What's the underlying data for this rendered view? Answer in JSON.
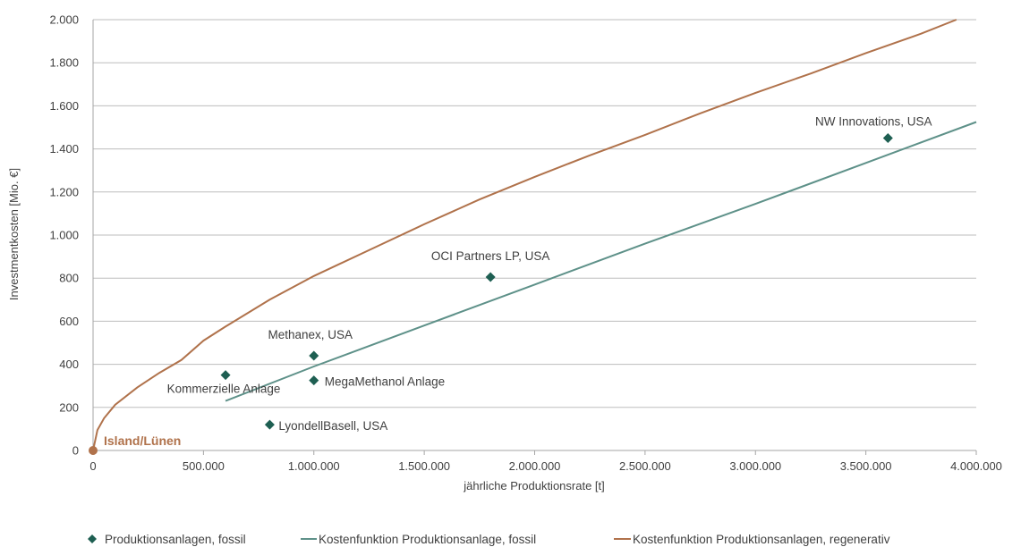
{
  "chart_data": {
    "type": "scatter",
    "xlabel": "jährliche Produktionsrate [t]",
    "ylabel": "Investmentkosten [Mio. €]",
    "xlim": [
      0,
      4000000
    ],
    "ylim": [
      0,
      2000
    ],
    "x_ticks": [
      0,
      500000,
      1000000,
      1500000,
      2000000,
      2500000,
      3000000,
      3500000,
      4000000
    ],
    "x_tick_labels": [
      "0",
      "500.000",
      "1.000.000",
      "1.500.000",
      "2.000.000",
      "2.500.000",
      "3.000.000",
      "3.500.000",
      "4.000.000"
    ],
    "y_ticks": [
      0,
      200,
      400,
      600,
      800,
      1000,
      1200,
      1400,
      1600,
      1800,
      2000
    ],
    "y_tick_labels": [
      "0",
      "200",
      "400",
      "600",
      "800",
      "1.000",
      "1.200",
      "1.400",
      "1.600",
      "1.800",
      "2.000"
    ],
    "grid": "horizontal",
    "legend_position": "bottom",
    "series": [
      {
        "name": "Produktionsanlagen, fossil",
        "kind": "scatter",
        "color": "#1e5f52",
        "marker": "diamond",
        "points": [
          {
            "x": 600000,
            "y": 350,
            "label": "Kommerzielle Anlage"
          },
          {
            "x": 1000000,
            "y": 440,
            "label": "Methanex, USA"
          },
          {
            "x": 1000000,
            "y": 325,
            "label": "MegaMethanol Anlage"
          },
          {
            "x": 800000,
            "y": 120,
            "label": "LyondellBasell, USA"
          },
          {
            "x": 1800000,
            "y": 805,
            "label": "OCI Partners LP, USA"
          },
          {
            "x": 3600000,
            "y": 1450,
            "label": "NW Innovations, USA"
          }
        ]
      },
      {
        "name": "Kostenfunktion Produktionsanlage, fossil",
        "kind": "line",
        "color": "#5e9189",
        "x": [
          600000,
          1000000,
          1500000,
          2000000,
          2500000,
          3000000,
          3500000,
          4000000
        ],
        "y": [
          230,
          390,
          580,
          770,
          960,
          1145,
          1335,
          1525
        ]
      },
      {
        "name": "Kostenfunktion Produktionsanlagen, regenerativ",
        "kind": "line",
        "color": "#b0724b",
        "x": [
          0,
          20000,
          50000,
          100000,
          200000,
          300000,
          400000,
          500000,
          600000,
          800000,
          1000000,
          1250000,
          1500000,
          1750000,
          2000000,
          2250000,
          2500000,
          2750000,
          3000000,
          3250000,
          3500000,
          3750000,
          3910000
        ],
        "y": [
          0,
          95,
          150,
          212,
          292,
          360,
          420,
          510,
          575,
          700,
          810,
          930,
          1050,
          1165,
          1270,
          1370,
          1465,
          1565,
          1660,
          1750,
          1845,
          1935,
          2000
        ]
      }
    ],
    "annotations": [
      {
        "x": 0,
        "y": 0,
        "label": "Island/Lünen",
        "color": "#b0724b",
        "bold": true
      }
    ]
  }
}
